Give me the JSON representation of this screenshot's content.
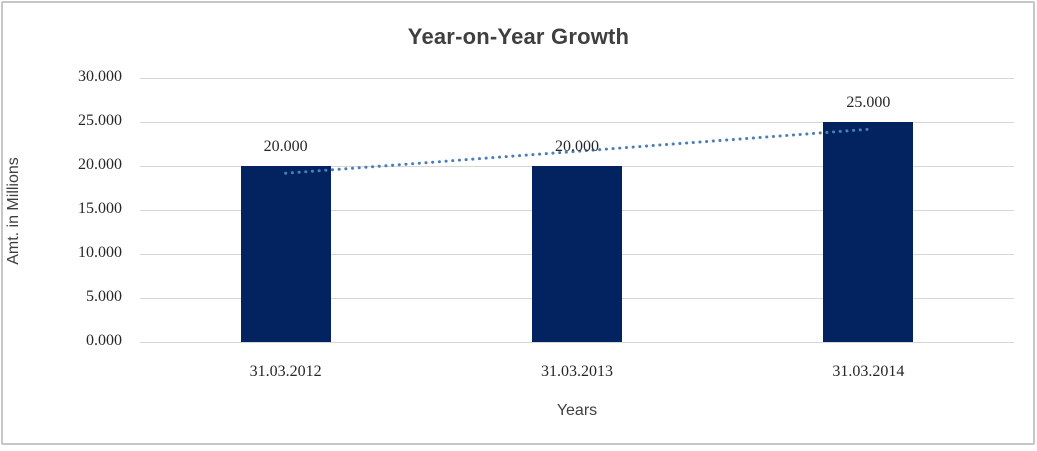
{
  "title": "Year-on-Year Growth",
  "colors": {
    "bar": "#02235f",
    "trendline": "#4a7ebb",
    "gridline": "#d6d6d6",
    "frame": "#c6c6c6",
    "title_text": "#3f3f3f",
    "tick_text": "#262626"
  },
  "chart_data": {
    "type": "bar",
    "title": "Year-on-Year Growth",
    "categories": [
      "31.03.2012",
      "31.03.2013",
      "31.03.2014"
    ],
    "values": [
      20.0,
      20.0,
      25.0
    ],
    "data_labels": [
      "20.000",
      "20.000",
      "25.000"
    ],
    "xlabel": "Years",
    "ylabel": "Amt. in Millions",
    "ylim": [
      0,
      30
    ],
    "ytick_step": 5,
    "ytick_labels": [
      "0.000",
      "5.000",
      "10.000",
      "15.000",
      "20.000",
      "25.000",
      "30.000"
    ],
    "grid": true,
    "legend": "none",
    "trendline": {
      "type": "linear",
      "style": "dotted",
      "values": [
        19.17,
        21.67,
        24.17
      ]
    }
  }
}
